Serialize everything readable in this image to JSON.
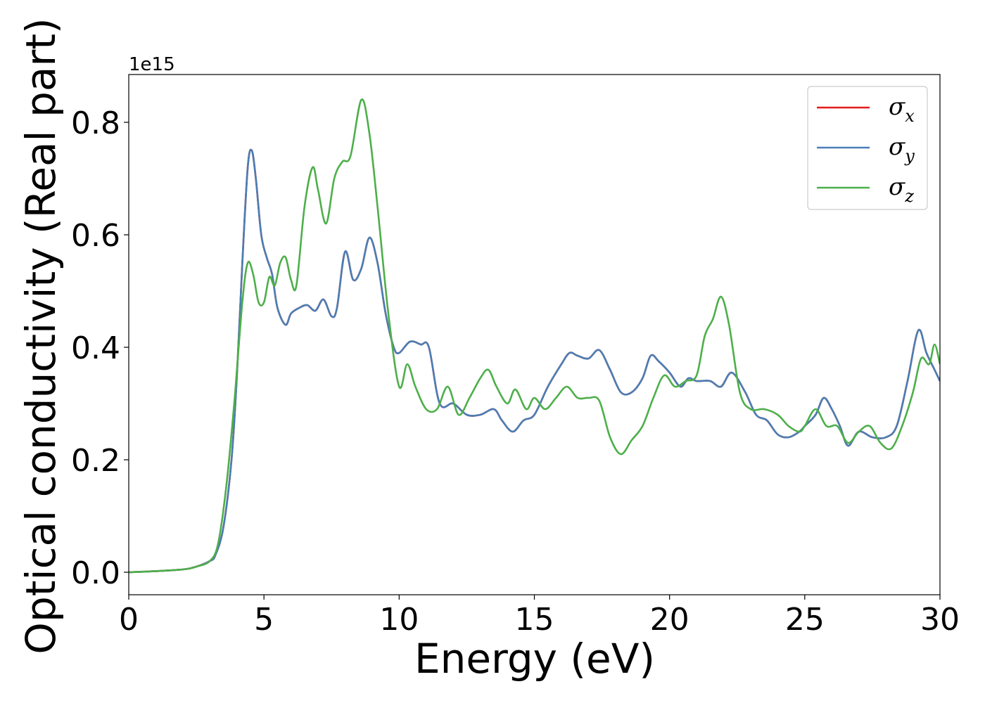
{
  "chart_data": {
    "type": "line",
    "xlabel": "Energy (eV)",
    "ylabel": "Optical conductivity (Real part)",
    "y_offset_text": "1e15",
    "xlim": [
      0,
      30
    ],
    "ylim": [
      -0.04,
      0.885
    ],
    "x_ticks": [
      0,
      5,
      10,
      15,
      20,
      25,
      30
    ],
    "x_tick_labels": [
      "0",
      "5",
      "10",
      "15",
      "20",
      "25",
      "30"
    ],
    "y_ticks": [
      0.0,
      0.2,
      0.4,
      0.6,
      0.8
    ],
    "y_tick_labels": [
      "0.0",
      "0.2",
      "0.4",
      "0.6",
      "0.8"
    ],
    "grid": false,
    "legend_position": "top-right",
    "series": [
      {
        "name": "σx",
        "symbol": "σ",
        "subscript": "x",
        "color": "#e41a1c",
        "x": [
          0,
          1,
          2,
          2.5,
          3,
          3.2,
          3.5,
          3.8,
          4.0,
          4.2,
          4.4,
          4.55,
          4.7,
          4.9,
          5.1,
          5.3,
          5.5,
          5.8,
          6.0,
          6.3,
          6.6,
          6.9,
          7.2,
          7.5,
          7.7,
          8.0,
          8.3,
          8.6,
          8.9,
          9.2,
          9.5,
          9.8,
          10.0,
          10.4,
          10.8,
          11.1,
          11.5,
          12.0,
          12.5,
          13.0,
          13.5,
          13.8,
          14.2,
          14.6,
          15.0,
          15.5,
          16.0,
          16.3,
          16.6,
          17.0,
          17.4,
          17.8,
          18.2,
          18.6,
          19.0,
          19.3,
          19.6,
          20.0,
          20.4,
          20.7,
          21.0,
          21.5,
          21.9,
          22.3,
          22.8,
          23.2,
          23.6,
          24.0,
          24.4,
          24.8,
          25.0,
          25.4,
          25.7,
          26.0,
          26.3,
          26.6,
          27.0,
          27.5,
          28.0,
          28.4,
          28.8,
          29.2,
          29.5,
          29.8,
          30.0
        ],
        "values": [
          0.0,
          0.002,
          0.005,
          0.01,
          0.02,
          0.03,
          0.08,
          0.2,
          0.35,
          0.55,
          0.72,
          0.75,
          0.7,
          0.6,
          0.56,
          0.53,
          0.47,
          0.44,
          0.46,
          0.47,
          0.475,
          0.465,
          0.485,
          0.455,
          0.47,
          0.57,
          0.52,
          0.54,
          0.595,
          0.55,
          0.46,
          0.4,
          0.39,
          0.41,
          0.405,
          0.4,
          0.3,
          0.3,
          0.28,
          0.28,
          0.29,
          0.27,
          0.25,
          0.27,
          0.28,
          0.33,
          0.37,
          0.39,
          0.385,
          0.38,
          0.395,
          0.36,
          0.32,
          0.32,
          0.345,
          0.385,
          0.375,
          0.355,
          0.33,
          0.345,
          0.34,
          0.34,
          0.33,
          0.355,
          0.32,
          0.28,
          0.27,
          0.245,
          0.24,
          0.25,
          0.26,
          0.28,
          0.31,
          0.29,
          0.26,
          0.225,
          0.25,
          0.24,
          0.24,
          0.26,
          0.34,
          0.43,
          0.39,
          0.36,
          0.34
        ]
      },
      {
        "name": "σy",
        "symbol": "σ",
        "subscript": "y",
        "color": "#4a7eb4",
        "x": [
          0,
          1,
          2,
          2.5,
          3,
          3.2,
          3.5,
          3.8,
          4.0,
          4.2,
          4.4,
          4.55,
          4.7,
          4.9,
          5.1,
          5.3,
          5.5,
          5.8,
          6.0,
          6.3,
          6.6,
          6.9,
          7.2,
          7.5,
          7.7,
          8.0,
          8.3,
          8.6,
          8.9,
          9.2,
          9.5,
          9.8,
          10.0,
          10.4,
          10.8,
          11.1,
          11.5,
          12.0,
          12.5,
          13.0,
          13.5,
          13.8,
          14.2,
          14.6,
          15.0,
          15.5,
          16.0,
          16.3,
          16.6,
          17.0,
          17.4,
          17.8,
          18.2,
          18.6,
          19.0,
          19.3,
          19.6,
          20.0,
          20.4,
          20.7,
          21.0,
          21.5,
          21.9,
          22.3,
          22.8,
          23.2,
          23.6,
          24.0,
          24.4,
          24.8,
          25.0,
          25.4,
          25.7,
          26.0,
          26.3,
          26.6,
          27.0,
          27.5,
          28.0,
          28.4,
          28.8,
          29.2,
          29.5,
          29.8,
          30.0
        ],
        "values": [
          0.0,
          0.002,
          0.005,
          0.01,
          0.02,
          0.03,
          0.08,
          0.2,
          0.35,
          0.55,
          0.72,
          0.75,
          0.7,
          0.6,
          0.56,
          0.53,
          0.47,
          0.44,
          0.46,
          0.47,
          0.475,
          0.465,
          0.485,
          0.455,
          0.47,
          0.57,
          0.52,
          0.54,
          0.595,
          0.55,
          0.46,
          0.4,
          0.39,
          0.41,
          0.405,
          0.4,
          0.3,
          0.3,
          0.28,
          0.28,
          0.29,
          0.27,
          0.25,
          0.27,
          0.28,
          0.33,
          0.37,
          0.39,
          0.385,
          0.38,
          0.395,
          0.36,
          0.32,
          0.32,
          0.345,
          0.385,
          0.375,
          0.355,
          0.33,
          0.345,
          0.34,
          0.34,
          0.33,
          0.355,
          0.32,
          0.28,
          0.27,
          0.245,
          0.24,
          0.25,
          0.26,
          0.28,
          0.31,
          0.29,
          0.26,
          0.225,
          0.25,
          0.24,
          0.24,
          0.26,
          0.34,
          0.43,
          0.39,
          0.36,
          0.34
        ]
      },
      {
        "name": "σz",
        "symbol": "σ",
        "subscript": "z",
        "color": "#4daf4a",
        "x": [
          0,
          1,
          2,
          2.5,
          3,
          3.3,
          3.6,
          3.9,
          4.2,
          4.4,
          4.6,
          4.8,
          5.0,
          5.2,
          5.4,
          5.6,
          5.8,
          6.0,
          6.2,
          6.5,
          6.8,
          7.0,
          7.3,
          7.6,
          7.9,
          8.2,
          8.6,
          8.9,
          9.2,
          9.6,
          10.0,
          10.3,
          10.6,
          11.0,
          11.4,
          11.8,
          12.2,
          12.6,
          13.0,
          13.3,
          13.6,
          14.0,
          14.3,
          14.7,
          15.0,
          15.4,
          15.8,
          16.2,
          16.6,
          17.0,
          17.4,
          17.8,
          18.2,
          18.6,
          19.0,
          19.4,
          19.8,
          20.2,
          20.6,
          21.0,
          21.3,
          21.6,
          21.9,
          22.2,
          22.6,
          23.0,
          23.5,
          24.0,
          24.4,
          24.8,
          25.0,
          25.4,
          25.8,
          26.2,
          26.6,
          27.0,
          27.4,
          27.8,
          28.2,
          28.6,
          29.0,
          29.3,
          29.6,
          29.8,
          30.0
        ],
        "values": [
          0.0,
          0.002,
          0.005,
          0.01,
          0.02,
          0.05,
          0.15,
          0.3,
          0.48,
          0.55,
          0.53,
          0.48,
          0.48,
          0.525,
          0.51,
          0.55,
          0.56,
          0.52,
          0.51,
          0.65,
          0.72,
          0.68,
          0.62,
          0.7,
          0.73,
          0.74,
          0.84,
          0.78,
          0.65,
          0.46,
          0.33,
          0.37,
          0.33,
          0.29,
          0.29,
          0.33,
          0.28,
          0.31,
          0.345,
          0.36,
          0.33,
          0.3,
          0.325,
          0.29,
          0.31,
          0.29,
          0.31,
          0.33,
          0.31,
          0.31,
          0.305,
          0.24,
          0.21,
          0.235,
          0.26,
          0.31,
          0.35,
          0.33,
          0.34,
          0.35,
          0.42,
          0.45,
          0.49,
          0.44,
          0.32,
          0.29,
          0.29,
          0.28,
          0.26,
          0.25,
          0.26,
          0.29,
          0.26,
          0.26,
          0.23,
          0.25,
          0.26,
          0.23,
          0.22,
          0.26,
          0.32,
          0.38,
          0.37,
          0.405,
          0.37
        ]
      }
    ]
  }
}
